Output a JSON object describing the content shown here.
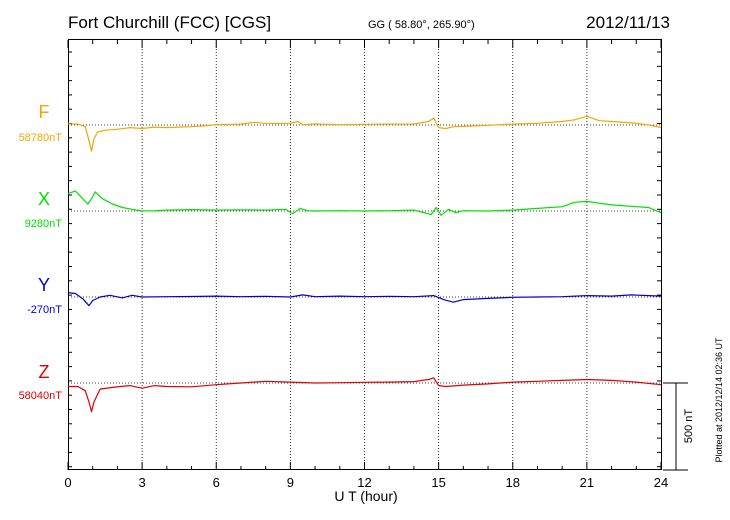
{
  "header": {
    "station": "Fort Churchill (FCC)  [CGS]",
    "coords": "GG ( 58.80°, 265.90°)",
    "date": "2012/11/13"
  },
  "xaxis": {
    "label": "U T (hour)"
  },
  "scale_bar": {
    "label": "500 nT",
    "nT": 500
  },
  "plotted_note": "Plotted at 2012/12/14 02:36 UT",
  "chart_data": {
    "type": "line",
    "title": "Fort Churchill (FCC)  [CGS]",
    "xlabel": "U T (hour)",
    "ylabel": "",
    "xlim": [
      0,
      24
    ],
    "xticks": [
      0,
      3,
      6,
      9,
      12,
      15,
      18,
      21,
      24
    ],
    "grid": true,
    "series": [
      {
        "name": "F",
        "baseline_label": "58780nT",
        "baseline": 58780,
        "color": "#f0a800",
        "points": [
          [
            0,
            58787
          ],
          [
            0.4,
            58785
          ],
          [
            0.7,
            58770
          ],
          [
            0.85,
            58690
          ],
          [
            0.95,
            58630
          ],
          [
            1.05,
            58700
          ],
          [
            1.2,
            58740
          ],
          [
            1.5,
            58750
          ],
          [
            2,
            58755
          ],
          [
            2.5,
            58765
          ],
          [
            3,
            58760
          ],
          [
            3.5,
            58768
          ],
          [
            4,
            58765
          ],
          [
            4.5,
            58768
          ],
          [
            5,
            58770
          ],
          [
            5.5,
            58775
          ],
          [
            6,
            58782
          ],
          [
            7,
            58785
          ],
          [
            7.5,
            58795
          ],
          [
            8,
            58790
          ],
          [
            8.5,
            58788
          ],
          [
            9,
            58790
          ],
          [
            9.3,
            58800
          ],
          [
            9.5,
            58782
          ],
          [
            10,
            58786
          ],
          [
            11,
            58782
          ],
          [
            12,
            58784
          ],
          [
            13,
            58785
          ],
          [
            14,
            58786
          ],
          [
            14.6,
            58800
          ],
          [
            14.8,
            58820
          ],
          [
            15,
            58765
          ],
          [
            15.3,
            58760
          ],
          [
            15.6,
            58770
          ],
          [
            16,
            58772
          ],
          [
            17,
            58778
          ],
          [
            18,
            58785
          ],
          [
            19,
            58790
          ],
          [
            20,
            58800
          ],
          [
            20.5,
            58810
          ],
          [
            21,
            58830
          ],
          [
            21.5,
            58805
          ],
          [
            22,
            58800
          ],
          [
            22.5,
            58795
          ],
          [
            23,
            58790
          ],
          [
            23.5,
            58780
          ],
          [
            24,
            58765
          ]
        ]
      },
      {
        "name": "X",
        "baseline_label": "9280nT",
        "baseline": 9280,
        "color": "#00e000",
        "points": [
          [
            0,
            9380
          ],
          [
            0.3,
            9395
          ],
          [
            0.6,
            9350
          ],
          [
            0.8,
            9320
          ],
          [
            0.95,
            9350
          ],
          [
            1.1,
            9390
          ],
          [
            1.4,
            9350
          ],
          [
            1.8,
            9320
          ],
          [
            2.2,
            9300
          ],
          [
            2.6,
            9290
          ],
          [
            3,
            9280
          ],
          [
            3.5,
            9282
          ],
          [
            4,
            9285
          ],
          [
            5,
            9288
          ],
          [
            6,
            9285
          ],
          [
            7,
            9287
          ],
          [
            8,
            9285
          ],
          [
            8.8,
            9290
          ],
          [
            9.1,
            9265
          ],
          [
            9.4,
            9295
          ],
          [
            9.7,
            9282
          ],
          [
            10,
            9280
          ],
          [
            11,
            9282
          ],
          [
            12,
            9280
          ],
          [
            13,
            9282
          ],
          [
            14,
            9285
          ],
          [
            14.7,
            9260
          ],
          [
            14.9,
            9300
          ],
          [
            15.1,
            9255
          ],
          [
            15.4,
            9290
          ],
          [
            15.7,
            9270
          ],
          [
            16,
            9282
          ],
          [
            17,
            9280
          ],
          [
            18,
            9285
          ],
          [
            19,
            9295
          ],
          [
            20,
            9305
          ],
          [
            20.5,
            9330
          ],
          [
            21,
            9335
          ],
          [
            21.5,
            9325
          ],
          [
            22,
            9315
          ],
          [
            23,
            9305
          ],
          [
            23.5,
            9300
          ],
          [
            24,
            9270
          ]
        ]
      },
      {
        "name": "Y",
        "baseline_label": "-270nT",
        "baseline": -270,
        "color": "#0000d0",
        "points": [
          [
            0,
            -245
          ],
          [
            0.3,
            -250
          ],
          [
            0.6,
            -280
          ],
          [
            0.85,
            -320
          ],
          [
            1,
            -290
          ],
          [
            1.3,
            -270
          ],
          [
            1.7,
            -260
          ],
          [
            2.2,
            -275
          ],
          [
            2.6,
            -260
          ],
          [
            3,
            -270
          ],
          [
            4,
            -268
          ],
          [
            5,
            -267
          ],
          [
            6,
            -265
          ],
          [
            7,
            -268
          ],
          [
            8,
            -266
          ],
          [
            9,
            -270
          ],
          [
            9.5,
            -258
          ],
          [
            10,
            -268
          ],
          [
            11,
            -265
          ],
          [
            12,
            -268
          ],
          [
            13,
            -266
          ],
          [
            14,
            -268
          ],
          [
            14.8,
            -262
          ],
          [
            15.2,
            -285
          ],
          [
            15.6,
            -300
          ],
          [
            16,
            -285
          ],
          [
            17,
            -278
          ],
          [
            18,
            -272
          ],
          [
            19,
            -270
          ],
          [
            20,
            -268
          ],
          [
            21,
            -262
          ],
          [
            22,
            -265
          ],
          [
            22.8,
            -258
          ],
          [
            23.5,
            -262
          ],
          [
            24,
            -265
          ]
        ]
      },
      {
        "name": "Z",
        "baseline_label": "58040nT",
        "baseline": 58040,
        "color": "#e00000",
        "points": [
          [
            0,
            58020
          ],
          [
            0.4,
            58020
          ],
          [
            0.7,
            57995
          ],
          [
            0.85,
            57930
          ],
          [
            0.95,
            57875
          ],
          [
            1.05,
            57930
          ],
          [
            1.3,
            58005
          ],
          [
            1.8,
            58015
          ],
          [
            2.5,
            58025
          ],
          [
            3,
            58010
          ],
          [
            3.5,
            58025
          ],
          [
            4,
            58020
          ],
          [
            5,
            58018
          ],
          [
            6,
            58030
          ],
          [
            7,
            58040
          ],
          [
            8,
            58050
          ],
          [
            9,
            58045
          ],
          [
            10,
            58040
          ],
          [
            11,
            58042
          ],
          [
            12,
            58044
          ],
          [
            13,
            58045
          ],
          [
            14,
            58048
          ],
          [
            14.6,
            58060
          ],
          [
            14.8,
            58070
          ],
          [
            15,
            58025
          ],
          [
            15.3,
            58020
          ],
          [
            16,
            58028
          ],
          [
            17,
            58035
          ],
          [
            18,
            58045
          ],
          [
            19,
            58050
          ],
          [
            20,
            58055
          ],
          [
            21,
            58060
          ],
          [
            22,
            58055
          ],
          [
            23,
            58045
          ],
          [
            24,
            58030
          ]
        ]
      }
    ]
  }
}
